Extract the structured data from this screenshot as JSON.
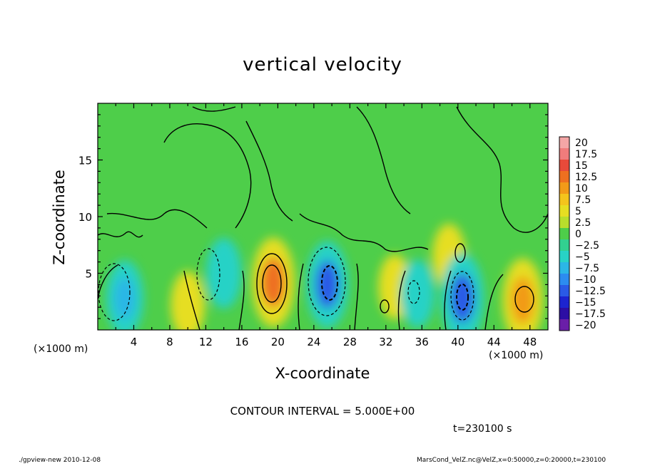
{
  "chart_data": {
    "type": "heatmap",
    "title": "vertical velocity",
    "xlabel": "X-coordinate",
    "ylabel": "Z-coordinate",
    "x_unit_left": "(×1000 m)",
    "x_unit_right": "(×1000 m)",
    "xlim": [
      0,
      50
    ],
    "ylim": [
      0,
      20
    ],
    "x_ticks": [
      4,
      8,
      12,
      16,
      20,
      24,
      28,
      32,
      36,
      40,
      44,
      48
    ],
    "y_ticks": [
      5,
      10,
      15
    ],
    "contour_interval_label": "CONTOUR INTERVAL = 5.000E+00",
    "time_label": "t=230100 s",
    "colorbar": {
      "labels": [
        "20",
        "17.5",
        "15",
        "12.5",
        "10",
        "7.5",
        "5",
        "2.5",
        "0",
        "−2.5",
        "−5",
        "−7.5",
        "−10",
        "−12.5",
        "−15",
        "−17.5",
        "−20"
      ],
      "colors": [
        "#f4a6a6",
        "#f07c7c",
        "#e84a3a",
        "#ee7020",
        "#f29a18",
        "#f4c41c",
        "#e6de22",
        "#b8de2c",
        "#4ece4a",
        "#32d090",
        "#28d2c6",
        "#2cb6e6",
        "#2c8cf0",
        "#2a5ae6",
        "#1c24d0",
        "#2c0ea4",
        "#6a1ea8"
      ]
    },
    "cells": [
      {
        "x": 3,
        "z": 2.8,
        "value": -8
      },
      {
        "x": 10,
        "z": 2.2,
        "value": 5
      },
      {
        "x": 14,
        "z": 5,
        "value": -6
      },
      {
        "x": 19.5,
        "z": 4.2,
        "value": 13
      },
      {
        "x": 25.5,
        "z": 4.0,
        "value": -12
      },
      {
        "x": 33,
        "z": 3.8,
        "value": 4
      },
      {
        "x": 35.5,
        "z": 3.2,
        "value": -5
      },
      {
        "x": 39,
        "z": 6.5,
        "value": 4
      },
      {
        "x": 40.5,
        "z": 2.8,
        "value": -13
      },
      {
        "x": 47.2,
        "z": 2.6,
        "value": 11
      }
    ]
  },
  "footer": {
    "left": "./gpview-new  2010-12-08",
    "right": "MarsCond_VelZ.nc@VelZ,x=0:50000,z=0:20000,t=230100"
  }
}
